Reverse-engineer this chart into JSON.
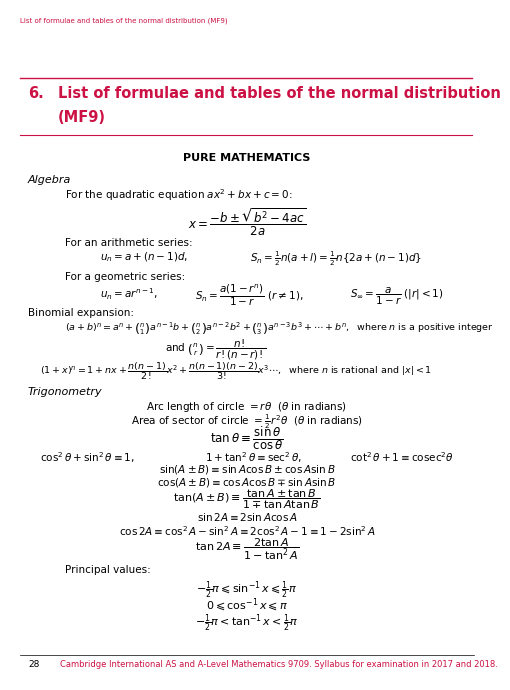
{
  "bg_color": "#ffffff",
  "header_color": "#cc1144",
  "footer_color": "#cc1144",
  "header_text": "List of formulae and tables of the normal distribution (MF9)",
  "footer_text": "28    Cambridge International AS and A-Level Mathematics 9709. Syllabus for examination in 2017 and 2018."
}
